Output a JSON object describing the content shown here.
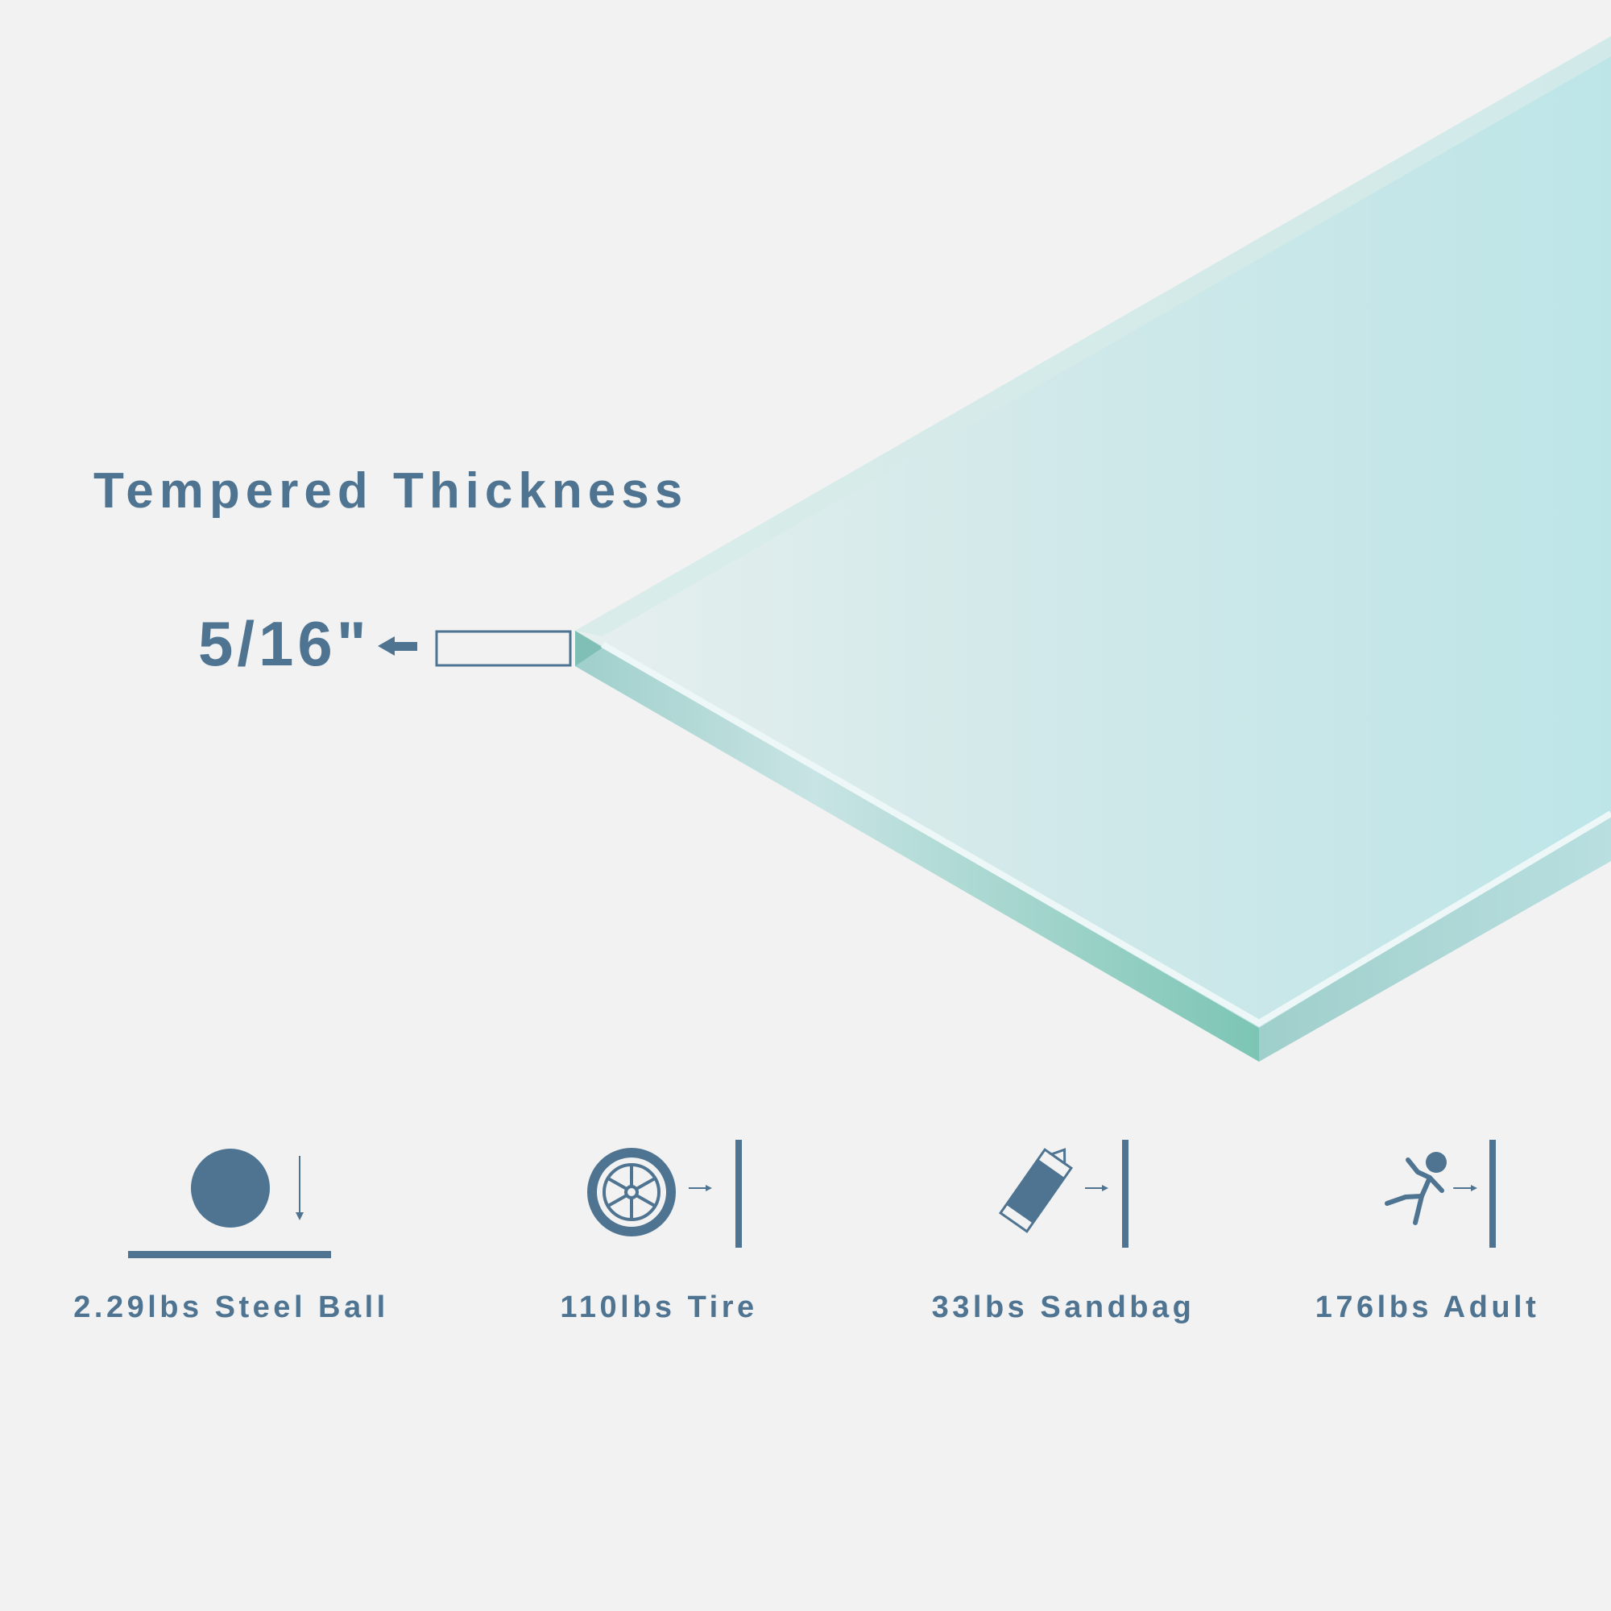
{
  "title": "Tempered Thickness",
  "thickness": "5/16\"",
  "colors": {
    "text": "#4f7491",
    "background": "#f2f2f2",
    "glass": "#c2e6e8",
    "glass_edge": "#7cc5b4"
  },
  "tests": [
    {
      "label": "2.29lbs Steel Ball",
      "icon": "steel-ball-drop-icon"
    },
    {
      "label": "110lbs Tire",
      "icon": "tire-impact-icon"
    },
    {
      "label": "33lbs Sandbag",
      "icon": "sandbag-impact-icon"
    },
    {
      "label": "176lbs Adult",
      "icon": "adult-impact-icon"
    }
  ]
}
